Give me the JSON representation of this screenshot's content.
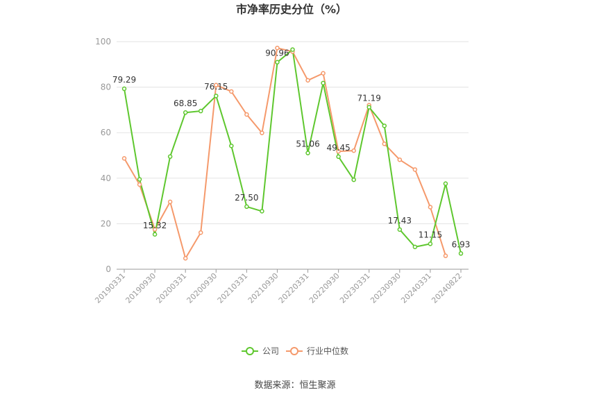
{
  "chart_data": {
    "type": "line",
    "title": "市净率历史分位（%）",
    "ylim": [
      0,
      100
    ],
    "yticks": [
      "0",
      "20",
      "40",
      "60",
      "80",
      "100"
    ],
    "xtick_labels": [
      "20190331",
      "20190930",
      "20200331",
      "20200930",
      "20210331",
      "20210930",
      "20220331",
      "20220930",
      "20230331",
      "20230930",
      "20240331",
      "20240822"
    ],
    "grid": true,
    "legend_position": "bottom",
    "series": [
      {
        "name": "公司",
        "color": "#5ec72e",
        "values": [
          79.29,
          39.5,
          15.32,
          49.5,
          68.85,
          69.5,
          76.15,
          54.2,
          27.5,
          25.5,
          90.96,
          96.5,
          51.06,
          81.8,
          49.45,
          39.3,
          71.19,
          63.0,
          17.43,
          9.8,
          11.15,
          37.6,
          6.93
        ],
        "labels": [
          "79.29",
          "",
          "15.32",
          "",
          "68.85",
          "",
          "76.15",
          "",
          "27.50",
          "",
          "90.96",
          "",
          "51.06",
          "",
          "49.45",
          "",
          "71.19",
          "",
          "17.43",
          "",
          "11.15",
          "",
          "6.93"
        ]
      },
      {
        "name": "行业中位数",
        "color": "#f5996b",
        "values": [
          48.7,
          37.2,
          17.5,
          29.6,
          4.8,
          16.1,
          80.9,
          78.1,
          68.0,
          59.9,
          97.2,
          95.6,
          83.0,
          86.1,
          51.8,
          52.1,
          72.1,
          55.1,
          48.1,
          43.8,
          27.3,
          5.9,
          null
        ]
      }
    ]
  },
  "legend": {
    "company": "公司",
    "industry": "行业中位数"
  },
  "source": "数据来源：恒生聚源"
}
